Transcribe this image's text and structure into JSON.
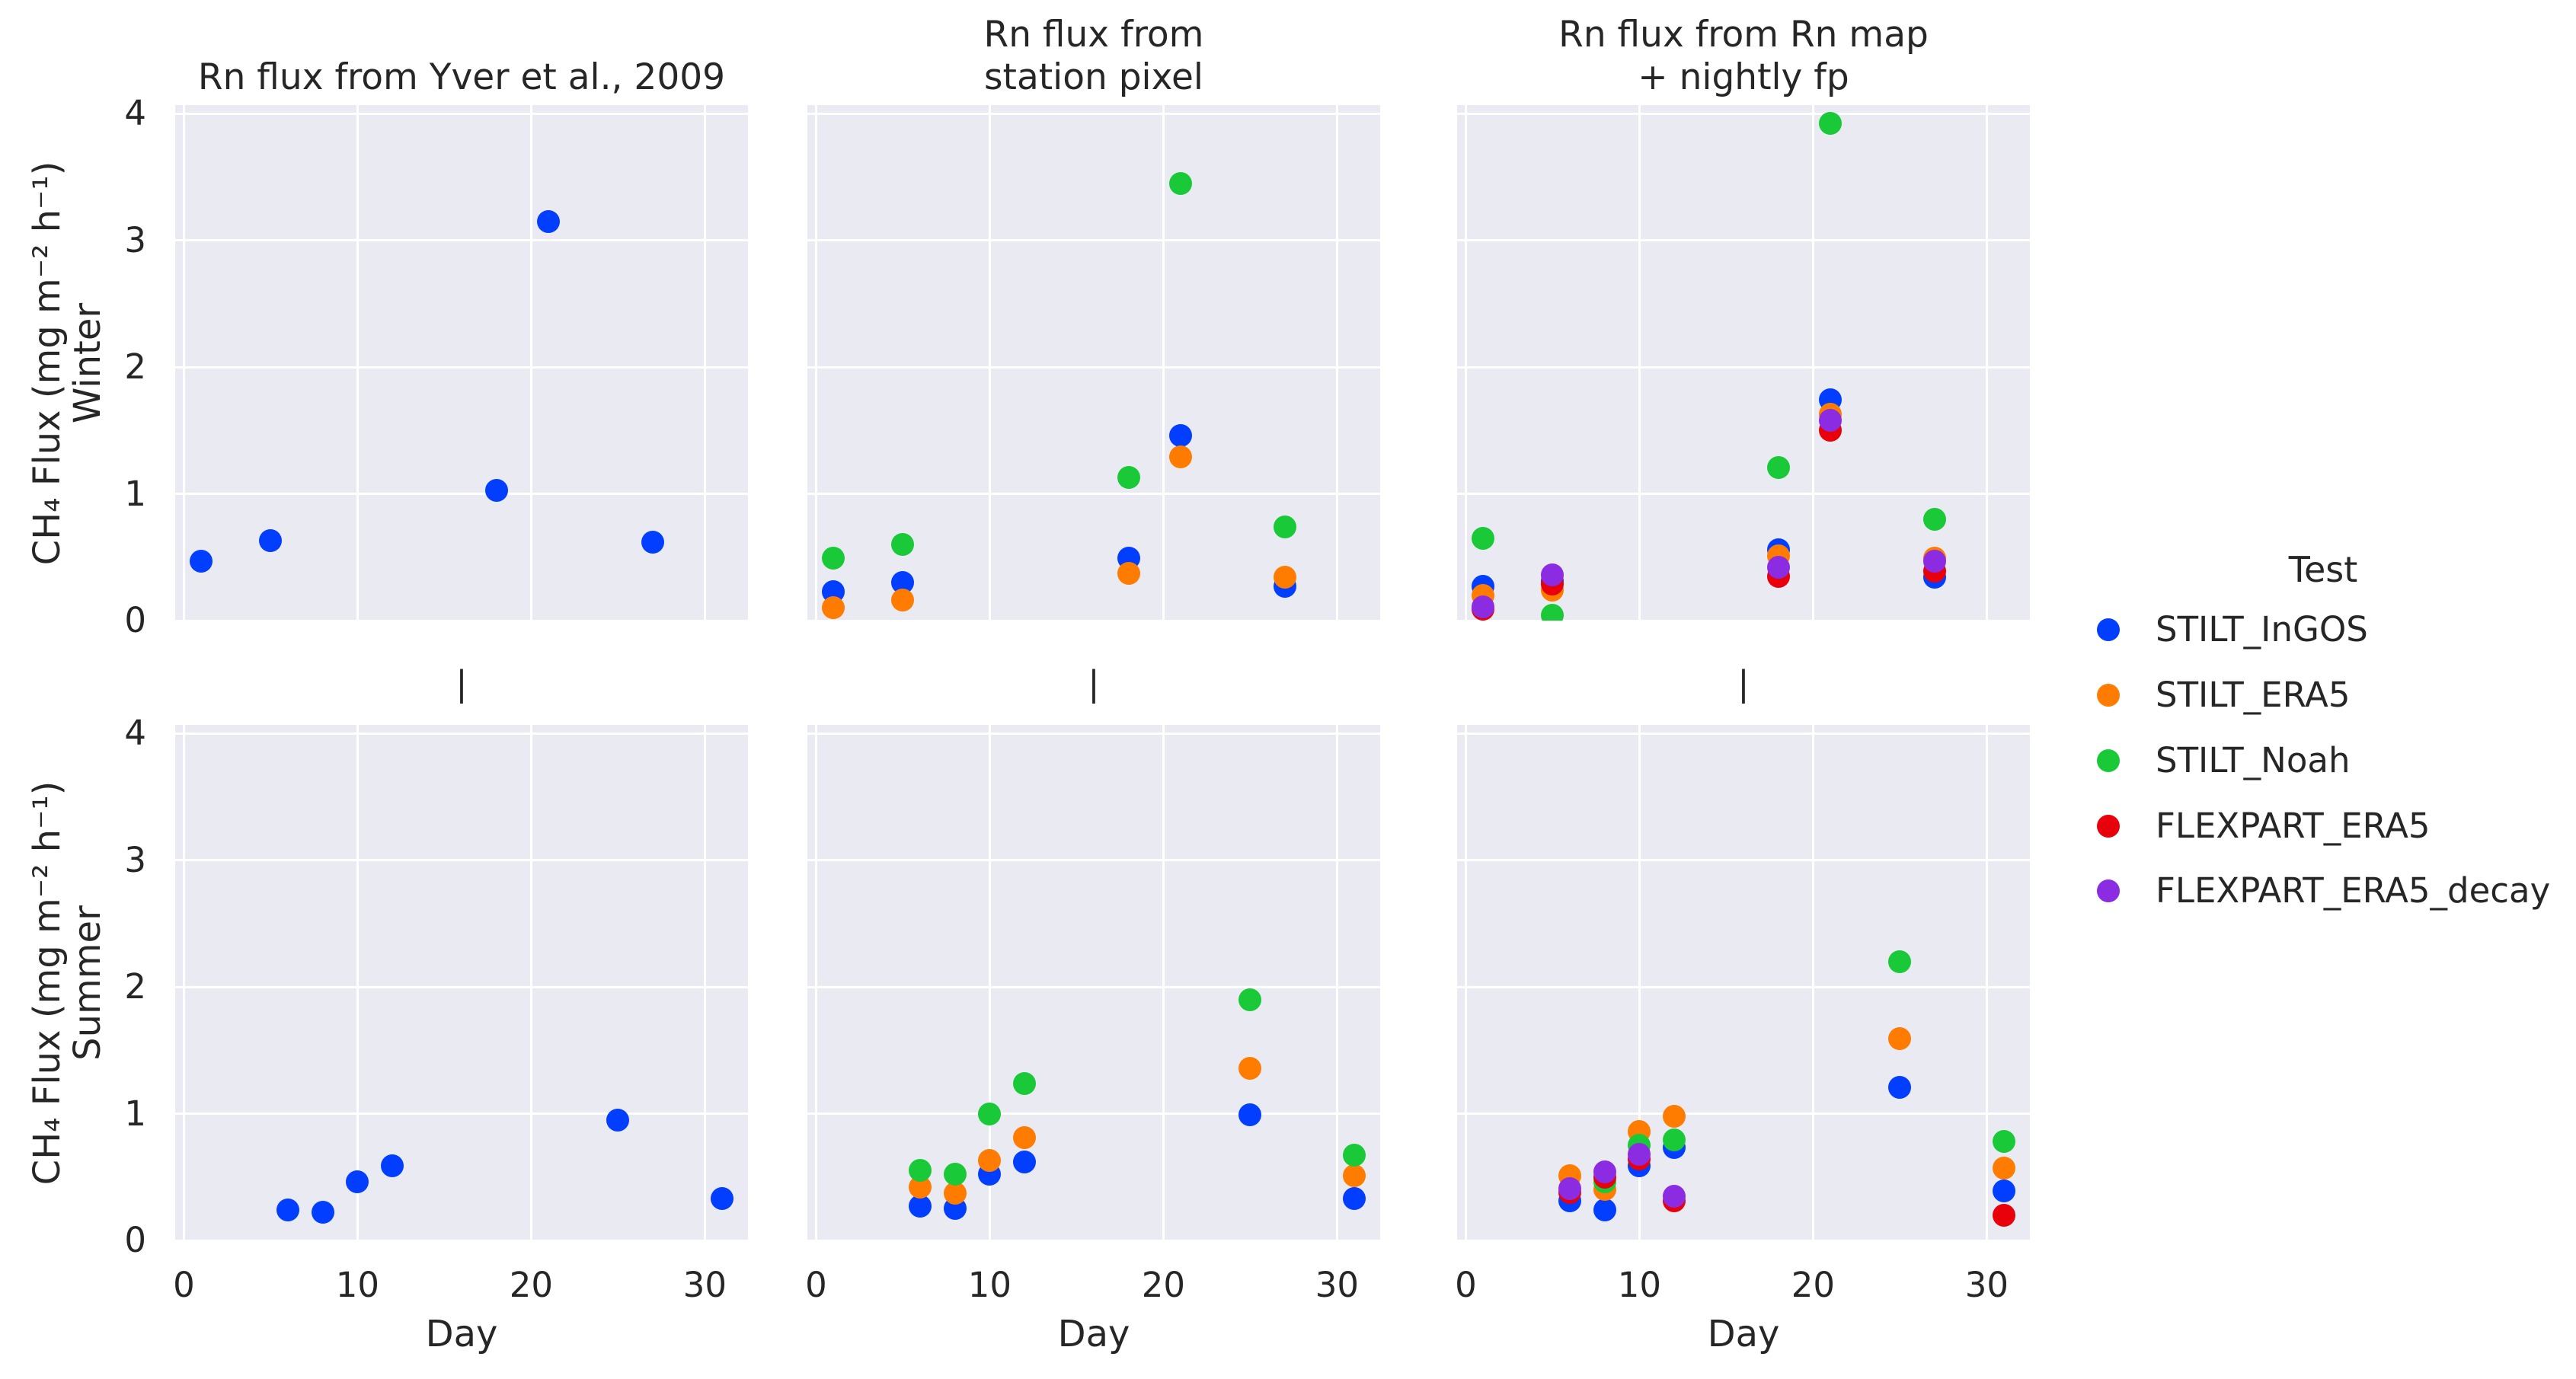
{
  "figure": {
    "column_titles": [
      {
        "lines": [
          "Rn flux from Yver et al., 2009"
        ]
      },
      {
        "lines": [
          "Rn flux from",
          "station pixel"
        ]
      },
      {
        "lines": [
          "Rn flux from Rn map",
          "+ nightly fp"
        ]
      }
    ],
    "row_separator": "|"
  },
  "axes": {
    "x_label": "Day",
    "y_axis_label": "CH₄ Flux (mg m⁻² h⁻¹)",
    "row_labels": [
      "Winter",
      "Summer"
    ],
    "x_ticks": [
      0,
      10,
      20,
      30
    ],
    "y_ticks": [
      0,
      1,
      2,
      3,
      4
    ],
    "xlim": [
      -0.5,
      32.5
    ],
    "ylim": [
      0,
      4.07
    ],
    "grid": true
  },
  "colors": {
    "STILT_InGOS": "#023EFF",
    "STILT_ERA5": "#FF7C00",
    "STILT_Noah": "#1AC938",
    "FLEXPART_ERA5": "#E8000B",
    "FLEXPART_ERA5_decay": "#8B2BE2",
    "plot_background": "#EAEAF2",
    "gridline": "#FFFFFF",
    "text": "#262626"
  },
  "legend": {
    "title": "Test",
    "position": "center right",
    "items": [
      {
        "label": "STILT_InGOS",
        "color": "#023EFF"
      },
      {
        "label": "STILT_ERA5",
        "color": "#FF7C00"
      },
      {
        "label": "STILT_Noah",
        "color": "#1AC938"
      },
      {
        "label": "FLEXPART_ERA5",
        "color": "#E8000B"
      },
      {
        "label": "FLEXPART_ERA5_decay",
        "color": "#8B2BE2"
      }
    ]
  },
  "chart_data": [
    {
      "type": "scatter",
      "row": 0,
      "col": 0,
      "row_label": "Winter",
      "title": "Rn flux from Yver et al., 2009",
      "series": [
        {
          "name": "STILT_InGOS",
          "points": [
            [
              1,
              0.47
            ],
            [
              5,
              0.63
            ],
            [
              18,
              1.03
            ],
            [
              21,
              3.15
            ],
            [
              27,
              0.62
            ]
          ]
        }
      ]
    },
    {
      "type": "scatter",
      "row": 0,
      "col": 1,
      "row_label": "Winter",
      "title": "Rn flux from station pixel",
      "series": [
        {
          "name": "STILT_InGOS",
          "points": [
            [
              1,
              0.23
            ],
            [
              5,
              0.3
            ],
            [
              18,
              0.49
            ],
            [
              21,
              1.46
            ],
            [
              27,
              0.27
            ]
          ]
        },
        {
          "name": "STILT_ERA5",
          "points": [
            [
              1,
              0.1
            ],
            [
              5,
              0.16
            ],
            [
              18,
              0.37
            ],
            [
              21,
              1.29
            ],
            [
              27,
              0.34
            ]
          ]
        },
        {
          "name": "STILT_Noah",
          "points": [
            [
              1,
              0.49
            ],
            [
              5,
              0.6
            ],
            [
              18,
              1.13
            ],
            [
              21,
              3.45
            ],
            [
              27,
              0.74
            ]
          ]
        }
      ]
    },
    {
      "type": "scatter",
      "row": 0,
      "col": 2,
      "row_label": "Winter",
      "title": "Rn flux from Rn map + nightly fp",
      "series": [
        {
          "name": "STILT_InGOS",
          "points": [
            [
              1,
              0.27
            ],
            [
              5,
              0.31
            ],
            [
              18,
              0.56
            ],
            [
              21,
              1.74
            ],
            [
              27,
              0.34
            ]
          ]
        },
        {
          "name": "STILT_ERA5",
          "points": [
            [
              1,
              0.2
            ],
            [
              5,
              0.24
            ],
            [
              18,
              0.51
            ],
            [
              21,
              1.63
            ],
            [
              27,
              0.49
            ]
          ]
        },
        {
          "name": "STILT_Noah",
          "points": [
            [
              1,
              0.65
            ],
            [
              5,
              0.04
            ],
            [
              18,
              1.21
            ],
            [
              21,
              3.92
            ],
            [
              27,
              0.8
            ]
          ]
        },
        {
          "name": "FLEXPART_ERA5",
          "points": [
            [
              1,
              0.09
            ],
            [
              5,
              0.29
            ],
            [
              18,
              0.35
            ],
            [
              21,
              1.5
            ],
            [
              27,
              0.39
            ]
          ]
        },
        {
          "name": "FLEXPART_ERA5_decay",
          "points": [
            [
              1,
              0.11
            ],
            [
              5,
              0.36
            ],
            [
              18,
              0.42
            ],
            [
              21,
              1.58
            ],
            [
              27,
              0.47
            ]
          ]
        }
      ]
    },
    {
      "type": "scatter",
      "row": 1,
      "col": 0,
      "row_label": "Summer",
      "title": "Rn flux from Yver et al., 2009",
      "series": [
        {
          "name": "STILT_InGOS",
          "points": [
            [
              6,
              0.24
            ],
            [
              8,
              0.22
            ],
            [
              10,
              0.46
            ],
            [
              12,
              0.59
            ],
            [
              25,
              0.95
            ],
            [
              31,
              0.33
            ]
          ]
        }
      ]
    },
    {
      "type": "scatter",
      "row": 1,
      "col": 1,
      "row_label": "Summer",
      "title": "Rn flux from station pixel",
      "series": [
        {
          "name": "STILT_InGOS",
          "points": [
            [
              6,
              0.27
            ],
            [
              8,
              0.25
            ],
            [
              10,
              0.52
            ],
            [
              12,
              0.62
            ],
            [
              25,
              0.99
            ],
            [
              31,
              0.33
            ]
          ]
        },
        {
          "name": "STILT_ERA5",
          "points": [
            [
              6,
              0.42
            ],
            [
              8,
              0.37
            ],
            [
              10,
              0.63
            ],
            [
              12,
              0.81
            ],
            [
              25,
              1.36
            ],
            [
              31,
              0.51
            ]
          ]
        },
        {
          "name": "STILT_Noah",
          "points": [
            [
              6,
              0.55
            ],
            [
              8,
              0.52
            ],
            [
              10,
              1.0
            ],
            [
              12,
              1.24
            ],
            [
              25,
              1.9
            ],
            [
              31,
              0.67
            ]
          ]
        }
      ]
    },
    {
      "type": "scatter",
      "row": 1,
      "col": 2,
      "row_label": "Summer",
      "title": "Rn flux from Rn map + nightly fp",
      "series": [
        {
          "name": "STILT_InGOS",
          "points": [
            [
              6,
              0.31
            ],
            [
              8,
              0.24
            ],
            [
              10,
              0.59
            ],
            [
              12,
              0.73
            ],
            [
              25,
              1.21
            ],
            [
              31,
              0.39
            ]
          ]
        },
        {
          "name": "STILT_ERA5",
          "points": [
            [
              6,
              0.51
            ],
            [
              8,
              0.4
            ],
            [
              10,
              0.86
            ],
            [
              12,
              0.98
            ],
            [
              25,
              1.59
            ],
            [
              31,
              0.57
            ]
          ]
        },
        {
          "name": "STILT_Noah",
          "points": [
            [
              8,
              0.46
            ],
            [
              10,
              0.75
            ],
            [
              12,
              0.79
            ],
            [
              25,
              2.2
            ],
            [
              31,
              0.78
            ]
          ]
        },
        {
          "name": "FLEXPART_ERA5",
          "points": [
            [
              6,
              0.38
            ],
            [
              8,
              0.5
            ],
            [
              10,
              0.64
            ],
            [
              12,
              0.31
            ],
            [
              31,
              0.2
            ]
          ]
        },
        {
          "name": "FLEXPART_ERA5_decay",
          "points": [
            [
              6,
              0.41
            ],
            [
              8,
              0.54
            ],
            [
              10,
              0.68
            ],
            [
              12,
              0.35
            ]
          ]
        }
      ]
    }
  ]
}
